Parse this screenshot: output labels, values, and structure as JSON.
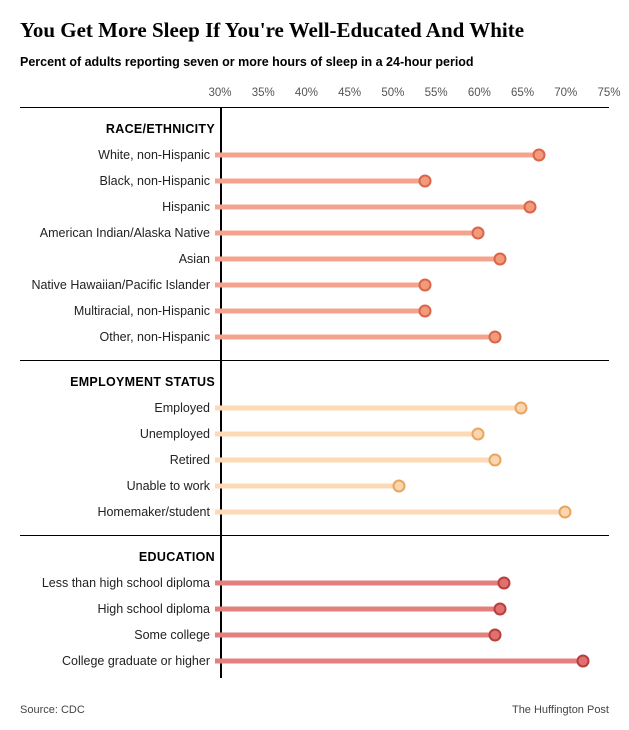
{
  "title": "You Get More Sleep If You're Well-Educated And White",
  "subtitle": "Percent of adults reporting seven or more hours of sleep in a 24-hour period",
  "axis": {
    "min": 30,
    "max": 75,
    "ticks": [
      30,
      35,
      40,
      45,
      50,
      55,
      60,
      65,
      70,
      75
    ]
  },
  "groups": [
    {
      "header": "RACE/ETHNICITY",
      "bar_color": "#f4a48e",
      "dot_fill": "#f29a7a",
      "dot_stroke": "#d9664a",
      "rows": [
        {
          "label": "White, non-Hispanic",
          "value": 67
        },
        {
          "label": "Black, non-Hispanic",
          "value": 54
        },
        {
          "label": "Hispanic",
          "value": 66
        },
        {
          "label": "American Indian/Alaska Native",
          "value": 60
        },
        {
          "label": "Asian",
          "value": 62.5
        },
        {
          "label": "Native Hawaiian/Pacific Islander",
          "value": 54
        },
        {
          "label": "Multiracial, non-Hispanic",
          "value": 54
        },
        {
          "label": "Other, non-Hispanic",
          "value": 62
        }
      ]
    },
    {
      "header": "EMPLOYMENT STATUS",
      "bar_color": "#fdd9b5",
      "dot_fill": "#fbd5ae",
      "dot_stroke": "#e8a661",
      "rows": [
        {
          "label": "Employed",
          "value": 65
        },
        {
          "label": "Unemployed",
          "value": 60
        },
        {
          "label": "Retired",
          "value": 62
        },
        {
          "label": "Unable to work",
          "value": 51
        },
        {
          "label": "Homemaker/student",
          "value": 70
        }
      ]
    },
    {
      "header": "EDUCATION",
      "bar_color": "#e37f7d",
      "dot_fill": "#df7270",
      "dot_stroke": "#b93e3c",
      "rows": [
        {
          "label": "Less than high school diploma",
          "value": 63
        },
        {
          "label": "High school diploma",
          "value": 62.5
        },
        {
          "label": "Some college",
          "value": 62
        },
        {
          "label": "College graduate or higher",
          "value": 72
        }
      ]
    }
  ],
  "source": "Source: CDC",
  "footer_right": "The Huffington Post"
}
